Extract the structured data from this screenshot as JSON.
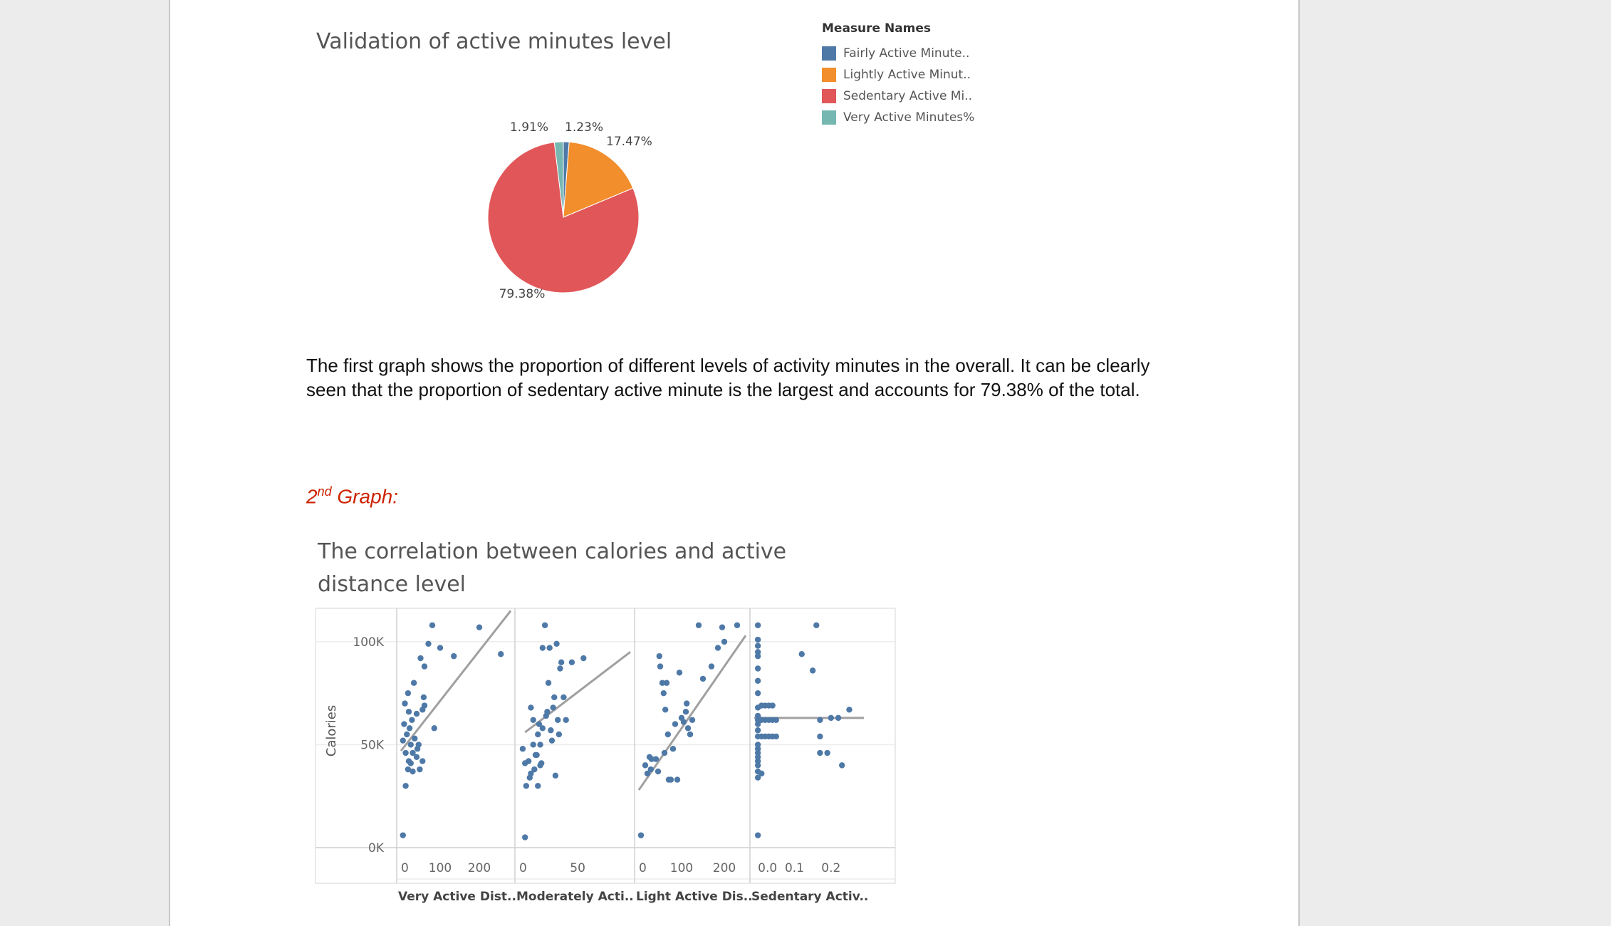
{
  "chart_data": [
    {
      "type": "pie",
      "title": "Validation of active minutes level",
      "legend_title": "Measure Names",
      "legend_position": "top-right",
      "slices": [
        {
          "name": "Fairly Active Minute..",
          "value": 1.23,
          "label": "1.23%",
          "color": "#4e79a7"
        },
        {
          "name": "Lightly Active Minut..",
          "value": 17.47,
          "label": "17.47%",
          "color": "#f28e2b"
        },
        {
          "name": "Sedentary Active Mi..",
          "value": 79.38,
          "label": "79.38%",
          "color": "#e15759"
        },
        {
          "name": "Very Active Minutes%",
          "value": 1.91,
          "label": "1.91%",
          "color": "#76b7b2"
        }
      ]
    },
    {
      "type": "scatter",
      "title": "The correlation between calories and active distance level",
      "ylabel": "Calories",
      "ylim": [
        0,
        110000
      ],
      "yticks": [
        {
          "value": 0,
          "label": "0K"
        },
        {
          "value": 50000,
          "label": "50K"
        },
        {
          "value": 100000,
          "label": "100K"
        }
      ],
      "point_color": "#4e79a7",
      "trend_color": "#a0a0a0",
      "panels": [
        {
          "xlabel": "Very Active Dist..",
          "xlim": [
            0,
            280
          ],
          "xticks": [
            {
              "value": 0,
              "label": "0"
            },
            {
              "value": 100,
              "label": "100"
            },
            {
              "value": 200,
              "label": "200"
            }
          ],
          "trend": [
            [
              0,
              47000
            ],
            [
              280,
              115000
            ]
          ],
          "points": [
            [
              5,
              52000
            ],
            [
              8,
              60000
            ],
            [
              10,
              70000
            ],
            [
              12,
              46000
            ],
            [
              15,
              55000
            ],
            [
              18,
              75000
            ],
            [
              20,
              42000
            ],
            [
              22,
              58000
            ],
            [
              25,
              50000
            ],
            [
              28,
              62000
            ],
            [
              30,
              46000
            ],
            [
              33,
              80000
            ],
            [
              35,
              53000
            ],
            [
              40,
              65000
            ],
            [
              45,
              50000
            ],
            [
              48,
              38000
            ],
            [
              50,
              92000
            ],
            [
              55,
              67000
            ],
            [
              60,
              88000
            ],
            [
              70,
              99000
            ],
            [
              80,
              108000
            ],
            [
              85,
              58000
            ],
            [
              100,
              97000
            ],
            [
              135,
              93000
            ],
            [
              200,
              107000
            ],
            [
              255,
              94000
            ],
            [
              5,
              6000
            ],
            [
              12,
              30000
            ],
            [
              18,
              38000
            ],
            [
              25,
              41000
            ],
            [
              30,
              37000
            ],
            [
              40,
              44000
            ],
            [
              42,
              48000
            ],
            [
              55,
              42000
            ],
            [
              60,
              69000
            ],
            [
              58,
              73000
            ],
            [
              20,
              66000
            ]
          ]
        },
        {
          "xlabel": "Moderately Acti..",
          "xlim": [
            0,
            95
          ],
          "xticks": [
            {
              "value": 0,
              "label": "0"
            },
            {
              "value": 50,
              "label": "50"
            }
          ],
          "trend": [
            [
              5,
              56000
            ],
            [
              95,
              95000
            ]
          ],
          "points": [
            [
              3,
              48000
            ],
            [
              5,
              5000
            ],
            [
              5,
              41000
            ],
            [
              6,
              30000
            ],
            [
              8,
              42000
            ],
            [
              9,
              34000
            ],
            [
              10,
              68000
            ],
            [
              12,
              62000
            ],
            [
              13,
              38000
            ],
            [
              15,
              45000
            ],
            [
              16,
              30000
            ],
            [
              17,
              60000
            ],
            [
              18,
              50000
            ],
            [
              19,
              41000
            ],
            [
              20,
              97000
            ],
            [
              22,
              108000
            ],
            [
              23,
              64000
            ],
            [
              24,
              66000
            ],
            [
              25,
              80000
            ],
            [
              26,
              97000
            ],
            [
              27,
              57000
            ],
            [
              28,
              52000
            ],
            [
              29,
              68000
            ],
            [
              30,
              73000
            ],
            [
              31,
              35000
            ],
            [
              32,
              99000
            ],
            [
              33,
              62000
            ],
            [
              34,
              55000
            ],
            [
              35,
              87000
            ],
            [
              36,
              90000
            ],
            [
              38,
              73000
            ],
            [
              40,
              62000
            ],
            [
              45,
              90000
            ],
            [
              55,
              92000
            ],
            [
              10,
              36000
            ],
            [
              14,
              45000
            ],
            [
              18,
              40000
            ],
            [
              16,
              55000
            ],
            [
              20,
              58000
            ],
            [
              12,
              50000
            ]
          ]
        },
        {
          "xlabel": "Light Active Dis..",
          "xlim": [
            0,
            250
          ],
          "xticks": [
            {
              "value": 0,
              "label": "0"
            },
            {
              "value": 100,
              "label": "100"
            },
            {
              "value": 200,
              "label": "200"
            }
          ],
          "trend": [
            [
              0,
              28000
            ],
            [
              250,
              103000
            ]
          ],
          "points": [
            [
              5,
              6000
            ],
            [
              15,
              40000
            ],
            [
              20,
              36000
            ],
            [
              25,
              44000
            ],
            [
              28,
              38000
            ],
            [
              30,
              43000
            ],
            [
              40,
              43000
            ],
            [
              45,
              37000
            ],
            [
              48,
              93000
            ],
            [
              50,
              88000
            ],
            [
              55,
              80000
            ],
            [
              58,
              75000
            ],
            [
              60,
              46000
            ],
            [
              62,
              67000
            ],
            [
              65,
              80000
            ],
            [
              68,
              55000
            ],
            [
              70,
              33000
            ],
            [
              75,
              33000
            ],
            [
              80,
              48000
            ],
            [
              85,
              60000
            ],
            [
              90,
              33000
            ],
            [
              95,
              85000
            ],
            [
              100,
              63000
            ],
            [
              105,
              61000
            ],
            [
              110,
              66000
            ],
            [
              112,
              70000
            ],
            [
              115,
              58000
            ],
            [
              120,
              55000
            ],
            [
              125,
              62000
            ],
            [
              140,
              108000
            ],
            [
              150,
              82000
            ],
            [
              170,
              88000
            ],
            [
              185,
              97000
            ],
            [
              195,
              107000
            ],
            [
              200,
              100000
            ],
            [
              230,
              108000
            ]
          ]
        },
        {
          "xlabel": "Sedentary Activ..",
          "xlim": [
            -0.01,
            0.29
          ],
          "xticks": [
            {
              "value": 0.0,
              "label": "0.0"
            },
            {
              "value": 0.1,
              "label": "0.1"
            },
            {
              "value": 0.2,
              "label": "0.2"
            }
          ],
          "trend": [
            [
              -0.01,
              63000
            ],
            [
              0.29,
              63000
            ]
          ],
          "points": [
            [
              0,
              6000
            ],
            [
              0,
              34000
            ],
            [
              0,
              37000
            ],
            [
              0,
              40000
            ],
            [
              0,
              42000
            ],
            [
              0,
              44000
            ],
            [
              0,
              46000
            ],
            [
              0,
              48000
            ],
            [
              0,
              50000
            ],
            [
              0,
              54000
            ],
            [
              0,
              57000
            ],
            [
              0,
              60000
            ],
            [
              0,
              62000
            ],
            [
              0,
              64000
            ],
            [
              0,
              68000
            ],
            [
              0,
              75000
            ],
            [
              0,
              81000
            ],
            [
              0,
              87000
            ],
            [
              0,
              93000
            ],
            [
              0,
              95000
            ],
            [
              0,
              98000
            ],
            [
              0,
              101000
            ],
            [
              0,
              108000
            ],
            [
              0.01,
              36000
            ],
            [
              0.01,
              54000
            ],
            [
              0.01,
              62000
            ],
            [
              0.01,
              69000
            ],
            [
              0.02,
              54000
            ],
            [
              0.02,
              62000
            ],
            [
              0.02,
              69000
            ],
            [
              0.03,
              54000
            ],
            [
              0.03,
              62000
            ],
            [
              0.03,
              69000
            ],
            [
              0.04,
              54000
            ],
            [
              0.04,
              62000
            ],
            [
              0.04,
              69000
            ],
            [
              0.05,
              54000
            ],
            [
              0.05,
              62000
            ],
            [
              0.12,
              94000
            ],
            [
              0.15,
              86000
            ],
            [
              0.16,
              108000
            ],
            [
              0.17,
              62000
            ],
            [
              0.17,
              54000
            ],
            [
              0.17,
              46000
            ],
            [
              0.19,
              46000
            ],
            [
              0.2,
              63000
            ],
            [
              0.22,
              63000
            ],
            [
              0.23,
              40000
            ],
            [
              0.25,
              67000
            ]
          ]
        }
      ]
    }
  ],
  "document": {
    "paragraph": "The first graph shows the proportion of different levels of activity minutes in the overall. It can be clearly seen that the proportion of sedentary active minute is the largest and accounts for 79.38% of the total.",
    "graph2_heading_number": "2",
    "graph2_heading_suffix": "nd",
    "graph2_heading_text": " Graph:"
  }
}
